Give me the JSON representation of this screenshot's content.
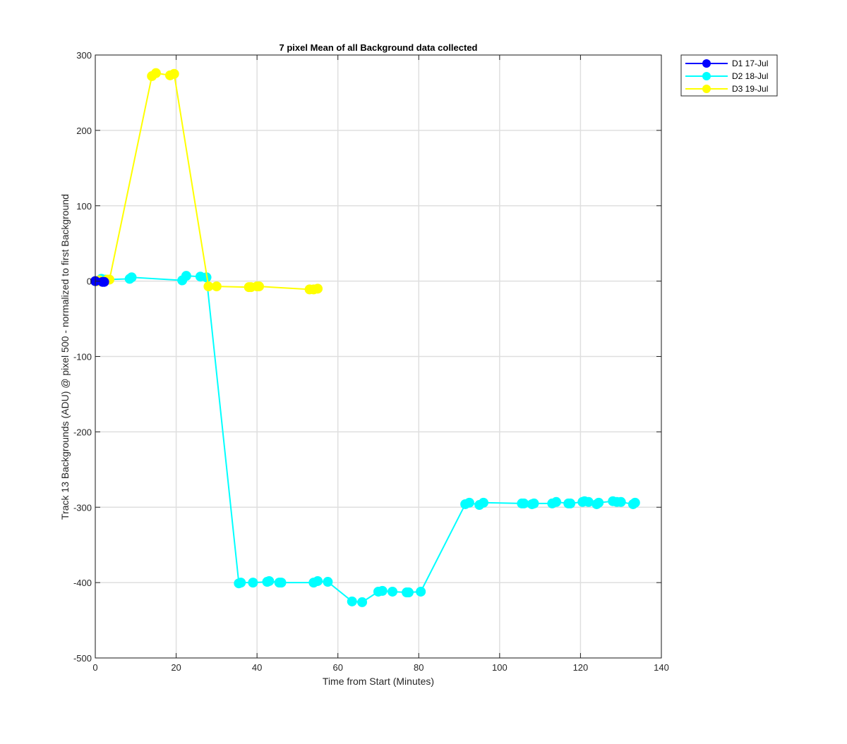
{
  "chart_data": {
    "type": "line",
    "title": "7 pixel Mean of all Background data collected",
    "xlabel": "Time from Start (Minutes)",
    "ylabel": "Track 13 Backgrounds (ADU) @ pixel 500 - normalized to first Background",
    "xlim": [
      0,
      140
    ],
    "ylim": [
      -500,
      300
    ],
    "xticks": [
      0,
      20,
      40,
      60,
      80,
      100,
      120,
      140
    ],
    "yticks": [
      -500,
      -400,
      -300,
      -200,
      -100,
      0,
      100,
      200,
      300
    ],
    "grid": true,
    "legend_position": "outside-top-right",
    "series": [
      {
        "name": "D1 17-Jul",
        "color": "#0000ff",
        "x": [
          0,
          1.8,
          2.2
        ],
        "y": [
          0,
          -1,
          -1
        ]
      },
      {
        "name": "D2 18-Jul",
        "color": "#00ffff",
        "x": [
          0,
          1.5,
          2.5,
          8.5,
          9,
          21.5,
          22.5,
          26,
          27.5,
          35.5,
          36,
          39,
          42.5,
          43,
          45.5,
          46,
          54,
          55,
          57.5,
          63.5,
          66,
          70,
          71,
          73.5,
          77,
          77.5,
          80.5,
          91.5,
          92.5,
          95,
          96,
          105.5,
          106,
          108,
          108.5,
          113,
          114,
          117,
          117.5,
          120.5,
          121,
          122,
          124,
          124.5,
          128,
          129,
          130,
          133,
          133.5
        ],
        "y": [
          0,
          3,
          2,
          3,
          5,
          1,
          7,
          6,
          5,
          -401,
          -400,
          -400,
          -399,
          -398,
          -400,
          -400,
          -400,
          -398,
          -399,
          -425,
          -426,
          -412,
          -411,
          -412,
          -413,
          -413,
          -412,
          -296,
          -294,
          -297,
          -294,
          -295,
          -295,
          -296,
          -295,
          -295,
          -293,
          -295,
          -295,
          -293,
          -292,
          -293,
          -296,
          -294,
          -292,
          -293,
          -293,
          -296,
          -294
        ]
      },
      {
        "name": "D3 19-Jul",
        "color": "#ffff00",
        "x": [
          0,
          0.5,
          1,
          3,
          3.5,
          14,
          15,
          18.5,
          19.5,
          28,
          30,
          38,
          38.5,
          40,
          40.5,
          53,
          54,
          55
        ],
        "y": [
          0,
          0,
          1,
          2,
          2,
          272,
          276,
          273,
          275,
          -7,
          -7,
          -8,
          -8,
          -7,
          -7,
          -11,
          -11,
          -10
        ]
      }
    ]
  }
}
